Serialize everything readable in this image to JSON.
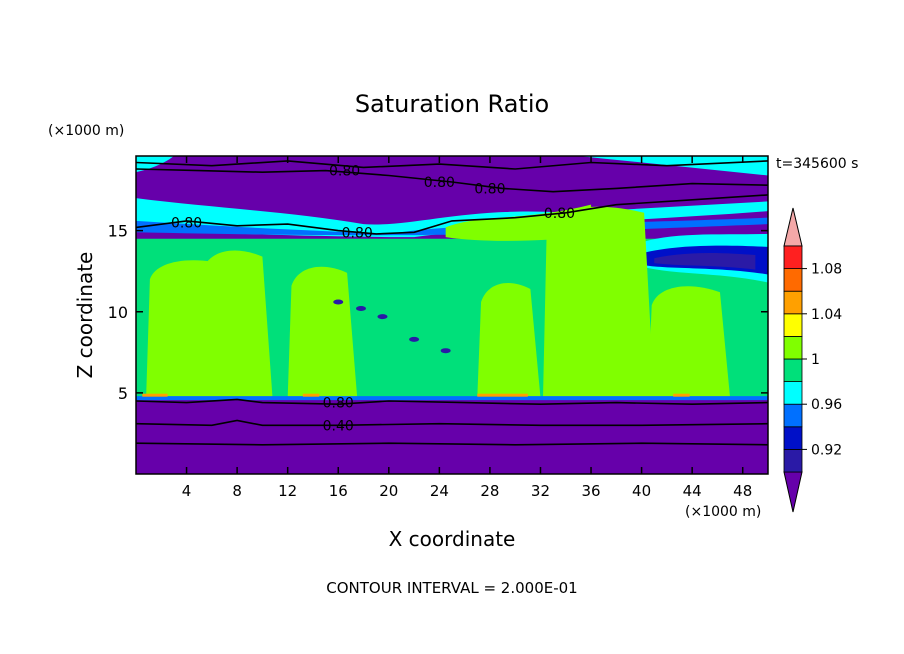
{
  "chart_data": {
    "type": "heatmap",
    "title": "Saturation Ratio",
    "xlabel": "X coordinate",
    "ylabel": "Z coordinate",
    "x_unit": "(×1000 m)",
    "y_unit": "(×1000 m)",
    "time_label": "t=345600 s",
    "footer": "CONTOUR INTERVAL = 2.000E-01",
    "xlim": [
      0,
      50
    ],
    "ylim": [
      0,
      19.6
    ],
    "x_ticks": [
      4,
      8,
      12,
      16,
      20,
      24,
      28,
      32,
      36,
      40,
      44,
      48
    ],
    "y_ticks": [
      5,
      10,
      15
    ],
    "colorbar": {
      "labeled_levels": [
        "1.08",
        "1.04",
        "1",
        "0.96",
        "0.92"
      ],
      "bands": [
        {
          "value": 0.9,
          "color": "#6600aa"
        },
        {
          "value": 0.91,
          "color": "#2a1aa6"
        },
        {
          "value": 0.93,
          "color": "#0010c8"
        },
        {
          "value": 0.95,
          "color": "#0070ff"
        },
        {
          "value": 0.97,
          "color": "#00ffff"
        },
        {
          "value": 0.99,
          "color": "#00e07a"
        },
        {
          "value": 1.01,
          "color": "#80ff00"
        },
        {
          "value": 1.03,
          "color": "#ffff00"
        },
        {
          "value": 1.05,
          "color": "#ffa000"
        },
        {
          "value": 1.07,
          "color": "#ff6a00"
        },
        {
          "value": 1.09,
          "color": "#ff2020"
        },
        {
          "value": 1.1,
          "color": "#f4a8a8"
        }
      ]
    },
    "contour_labels": [
      {
        "text": "0.80",
        "x": 16.5,
        "z": 18.7
      },
      {
        "text": "0.80",
        "x": 24.0,
        "z": 18.0
      },
      {
        "text": "0.80",
        "x": 28.0,
        "z": 17.6
      },
      {
        "text": "0.80",
        "x": 33.5,
        "z": 16.1
      },
      {
        "text": "0.80",
        "x": 4.0,
        "z": 15.5
      },
      {
        "text": "0.80",
        "x": 17.5,
        "z": 14.9
      },
      {
        "text": "0.80",
        "x": 16.0,
        "z": 4.4
      },
      {
        "text": "0.40",
        "x": 16.0,
        "z": 3.0
      }
    ]
  }
}
